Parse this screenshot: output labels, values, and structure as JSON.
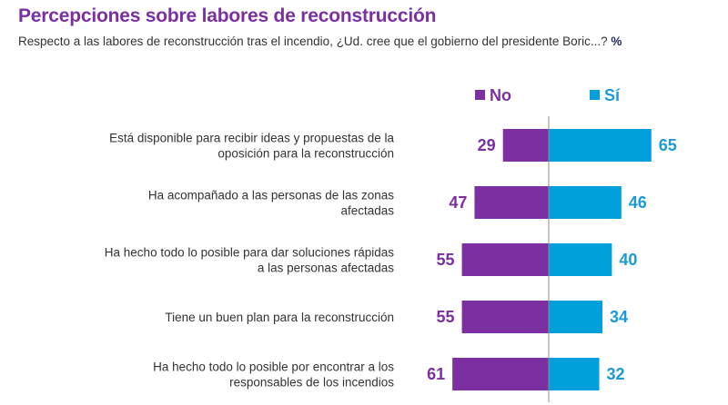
{
  "header": {
    "title": "Percepciones sobre labores de reconstrucción",
    "subtitle": "Respecto a las labores de reconstrucción tras el incendio, ¿Ud. cree que el gobierno del presidente Boric...?",
    "unit": "%"
  },
  "chart_data": {
    "type": "bar",
    "orientation": "horizontal-diverging",
    "title": "Percepciones sobre labores de reconstrucción",
    "subtitle": "Respecto a las labores de reconstrucción tras el incendio, ¿Ud. cree que el gobierno del presidente Boric...? %",
    "xlabel": "",
    "ylabel": "",
    "legend_position": "top-right",
    "grid": false,
    "categories": [
      [
        "Está disponible para recibir ideas y propuestas de la",
        "oposición para la reconstrucción"
      ],
      [
        "Ha acompañado a las personas de las zonas",
        "afectadas"
      ],
      [
        "Ha hecho todo lo posible para dar soluciones rápidas",
        "a las personas afectadas"
      ],
      [
        "Tiene un buen plan para la reconstrucción"
      ],
      [
        "Ha hecho todo lo posible por encontrar a los",
        "responsables de los incendios"
      ]
    ],
    "series": [
      {
        "name": "No",
        "color": "#7b2fa1",
        "values": [
          29,
          47,
          55,
          55,
          61
        ]
      },
      {
        "name": "Sí",
        "color": "#00a0dc",
        "values": [
          65,
          46,
          40,
          34,
          32
        ]
      }
    ],
    "xlim": [
      0,
      100
    ]
  }
}
